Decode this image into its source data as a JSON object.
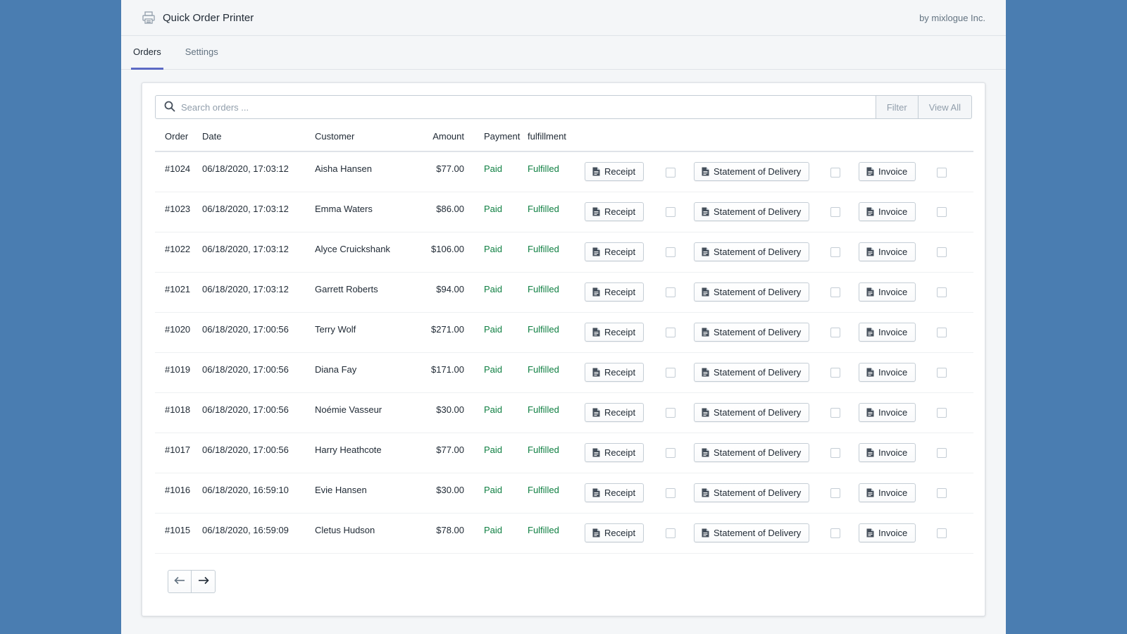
{
  "app": {
    "title": "Quick Order Printer",
    "byline": "by mixlogue Inc."
  },
  "tabs": [
    {
      "label": "Orders",
      "active": true
    },
    {
      "label": "Settings",
      "active": false
    }
  ],
  "search": {
    "placeholder": "Search orders ...",
    "value": ""
  },
  "buttons": {
    "filter": "Filter",
    "view_all": "View All"
  },
  "table": {
    "headers": {
      "order": "Order",
      "date": "Date",
      "customer": "Customer",
      "amount": "Amount",
      "payment": "Payment",
      "fulfillment": "fulfillment"
    },
    "doc_labels": {
      "receipt": "Receipt",
      "statement": "Statement of Delivery",
      "invoice": "Invoice"
    },
    "rows": [
      {
        "order": "#1024",
        "date": "06/18/2020, 17:03:12",
        "customer": "Aisha Hansen",
        "amount": "$77.00",
        "payment": "Paid",
        "fulfillment": "Fulfilled"
      },
      {
        "order": "#1023",
        "date": "06/18/2020, 17:03:12",
        "customer": "Emma Waters",
        "amount": "$86.00",
        "payment": "Paid",
        "fulfillment": "Fulfilled"
      },
      {
        "order": "#1022",
        "date": "06/18/2020, 17:03:12",
        "customer": "Alyce Cruickshank",
        "amount": "$106.00",
        "payment": "Paid",
        "fulfillment": "Fulfilled"
      },
      {
        "order": "#1021",
        "date": "06/18/2020, 17:03:12",
        "customer": "Garrett Roberts",
        "amount": "$94.00",
        "payment": "Paid",
        "fulfillment": "Fulfilled"
      },
      {
        "order": "#1020",
        "date": "06/18/2020, 17:00:56",
        "customer": "Terry Wolf",
        "amount": "$271.00",
        "payment": "Paid",
        "fulfillment": "Fulfilled"
      },
      {
        "order": "#1019",
        "date": "06/18/2020, 17:00:56",
        "customer": "Diana Fay",
        "amount": "$171.00",
        "payment": "Paid",
        "fulfillment": "Fulfilled"
      },
      {
        "order": "#1018",
        "date": "06/18/2020, 17:00:56",
        "customer": "Noémie Vasseur",
        "amount": "$30.00",
        "payment": "Paid",
        "fulfillment": "Fulfilled"
      },
      {
        "order": "#1017",
        "date": "06/18/2020, 17:00:56",
        "customer": "Harry Heathcote",
        "amount": "$77.00",
        "payment": "Paid",
        "fulfillment": "Fulfilled"
      },
      {
        "order": "#1016",
        "date": "06/18/2020, 16:59:10",
        "customer": "Evie Hansen",
        "amount": "$30.00",
        "payment": "Paid",
        "fulfillment": "Fulfilled"
      },
      {
        "order": "#1015",
        "date": "06/18/2020, 16:59:09",
        "customer": "Cletus Hudson",
        "amount": "$78.00",
        "payment": "Paid",
        "fulfillment": "Fulfilled"
      }
    ]
  },
  "icons": {
    "logo": "printer-icon",
    "search": "search-icon",
    "doc": "document-icon",
    "prev": "arrow-left-icon",
    "next": "arrow-right-icon"
  },
  "colors": {
    "background": "#4a7db1",
    "accent": "#5c6ac4",
    "status_green": "#108043"
  }
}
